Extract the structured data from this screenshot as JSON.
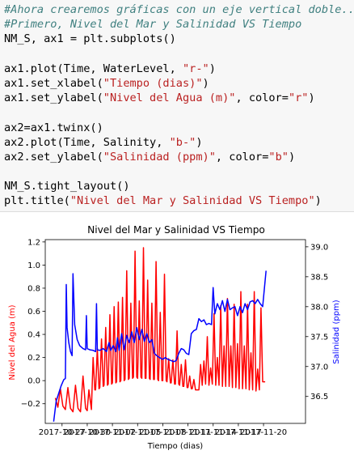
{
  "code_cell": {
    "lines": [
      [
        {
          "t": "#Ahora crearemos gráficas con un eje vertical doble...",
          "c": "comment"
        }
      ],
      [
        {
          "t": "#Primero, Nivel del Mar y Salinidad VS Tiempo",
          "c": "comment"
        }
      ],
      [
        {
          "t": "NM_S, ax1 = plt.subplots()",
          "c": ""
        }
      ],
      [
        {
          "t": "",
          "c": ""
        }
      ],
      [
        {
          "t": "ax1.plot(Time, WaterLevel, ",
          "c": ""
        },
        {
          "t": "\"r-\"",
          "c": "str"
        },
        {
          "t": ")",
          "c": ""
        }
      ],
      [
        {
          "t": "ax1.set_xlabel(",
          "c": ""
        },
        {
          "t": "\"Tiempo (dias)\"",
          "c": "str"
        },
        {
          "t": ")",
          "c": ""
        }
      ],
      [
        {
          "t": "ax1.set_ylabel(",
          "c": ""
        },
        {
          "t": "\"Nivel del Agua (m)\"",
          "c": "str"
        },
        {
          "t": ", color=",
          "c": ""
        },
        {
          "t": "\"r\"",
          "c": "str"
        },
        {
          "t": ")",
          "c": ""
        }
      ],
      [
        {
          "t": "",
          "c": ""
        }
      ],
      [
        {
          "t": "ax2=ax1.twinx()",
          "c": ""
        }
      ],
      [
        {
          "t": "ax2.plot(Time, Salinity, ",
          "c": ""
        },
        {
          "t": "\"b-\"",
          "c": "str"
        },
        {
          "t": ")",
          "c": ""
        }
      ],
      [
        {
          "t": "ax2.set_ylabel(",
          "c": ""
        },
        {
          "t": "\"Salinidad (ppm)\"",
          "c": "str"
        },
        {
          "t": ", color=",
          "c": ""
        },
        {
          "t": "\"b\"",
          "c": "str"
        },
        {
          "t": ")",
          "c": ""
        }
      ],
      [
        {
          "t": "",
          "c": ""
        }
      ],
      [
        {
          "t": "NM_S.tight_layout()",
          "c": ""
        }
      ],
      [
        {
          "t": "plt.title(",
          "c": ""
        },
        {
          "t": "\"Nivel del Mar y Salinidad VS Tiempo\"",
          "c": "str"
        },
        {
          "t": ")",
          "c": ""
        }
      ],
      [
        {
          "t": "plt.show()",
          "c": ""
        }
      ]
    ]
  },
  "chart_data": {
    "type": "line",
    "title": "Nivel del Mar y Salinidad VS Tiempo",
    "xlabel": "Tiempo (dias)",
    "ylabel_left": "Nivel del Agua (m)",
    "ylabel_right": "Salinidad (ppm)",
    "left_color": "#ff0000",
    "right_color": "#0000ff",
    "xlim": [
      0,
      31
    ],
    "ylim_left": [
      -0.37,
      1.22
    ],
    "ylim_right": [
      36.05,
      39.12
    ],
    "x_ticks": [
      {
        "x": 2,
        "label": "2017-10-27"
      },
      {
        "x": 5,
        "label": "2017-10-30"
      },
      {
        "x": 8,
        "label": "2017-11-02"
      },
      {
        "x": 11,
        "label": "2017-11-05"
      },
      {
        "x": 14,
        "label": "2017-11-08"
      },
      {
        "x": 17,
        "label": "2017-11-11"
      },
      {
        "x": 20,
        "label": "2017-11-14"
      },
      {
        "x": 23,
        "label": "2017-11-17"
      },
      {
        "x": 26,
        "label": "2017-11-20"
      }
    ],
    "y_ticks_left": [
      -0.2,
      0.0,
      0.2,
      0.4,
      0.6,
      0.8,
      1.0,
      1.2
    ],
    "y_tick_labels_left": [
      "−0.2",
      "0.0",
      "0.2",
      "0.4",
      "0.6",
      "0.8",
      "1.0",
      "1.2"
    ],
    "y_ticks_right": [
      36.5,
      37.0,
      37.5,
      38.0,
      38.5,
      39.0
    ],
    "y_tick_labels_right": [
      "36.5",
      "37.0",
      "37.5",
      "38.0",
      "38.5",
      "39.0"
    ],
    "series": [
      {
        "name": "",
        "axis": "left",
        "points": [
          [
            1.2,
            -0.15
          ],
          [
            1.5,
            -0.23
          ],
          [
            1.8,
            -0.07
          ],
          [
            2.1,
            -0.22
          ],
          [
            2.4,
            -0.25
          ],
          [
            2.7,
            -0.06
          ],
          [
            3.0,
            -0.24
          ],
          [
            3.3,
            -0.27
          ],
          [
            3.6,
            -0.04
          ],
          [
            3.9,
            -0.24
          ],
          [
            4.2,
            -0.27
          ],
          [
            4.5,
            0.04
          ],
          [
            4.8,
            -0.24
          ],
          [
            5.0,
            -0.26
          ],
          [
            5.2,
            -0.08
          ],
          [
            5.5,
            -0.25
          ],
          [
            5.7,
            0.2
          ],
          [
            5.9,
            -0.08
          ],
          [
            6.0,
            -0.08
          ],
          [
            6.2,
            0.28
          ],
          [
            6.4,
            -0.07
          ],
          [
            6.5,
            -0.06
          ],
          [
            6.7,
            0.36
          ],
          [
            6.9,
            -0.05
          ],
          [
            7.0,
            -0.04
          ],
          [
            7.2,
            0.46
          ],
          [
            7.4,
            -0.04
          ],
          [
            7.5,
            -0.03
          ],
          [
            7.7,
            0.57
          ],
          [
            7.9,
            -0.03
          ],
          [
            8.0,
            -0.02
          ],
          [
            8.2,
            0.64
          ],
          [
            8.4,
            -0.02
          ],
          [
            8.5,
            -0.01
          ],
          [
            8.7,
            0.68
          ],
          [
            8.9,
            -0.01
          ],
          [
            9.0,
            0.0
          ],
          [
            9.2,
            0.72
          ],
          [
            9.4,
            0.0
          ],
          [
            9.5,
            0.01
          ],
          [
            9.7,
            0.95
          ],
          [
            9.9,
            0.01
          ],
          [
            10.0,
            0.02
          ],
          [
            10.2,
            0.67
          ],
          [
            10.4,
            0.02
          ],
          [
            10.5,
            0.03
          ],
          [
            10.7,
            1.12
          ],
          [
            10.9,
            0.03
          ],
          [
            11.0,
            0.02
          ],
          [
            11.2,
            0.69
          ],
          [
            11.4,
            0.03
          ],
          [
            11.5,
            0.02
          ],
          [
            11.7,
            1.15
          ],
          [
            11.9,
            0.02
          ],
          [
            12.0,
            0.02
          ],
          [
            12.2,
            0.87
          ],
          [
            12.4,
            0.02
          ],
          [
            12.5,
            0.01
          ],
          [
            12.7,
            0.67
          ],
          [
            12.9,
            0.01
          ],
          [
            13.0,
            0.01
          ],
          [
            13.2,
            1.03
          ],
          [
            13.4,
            0.01
          ],
          [
            13.5,
            0.0
          ],
          [
            13.7,
            0.59
          ],
          [
            13.9,
            0.0
          ],
          [
            14.0,
            0.0
          ],
          [
            14.2,
            0.92
          ],
          [
            14.4,
            0.0
          ],
          [
            14.5,
            -0.01
          ],
          [
            14.7,
            0.19
          ],
          [
            14.9,
            -0.02
          ],
          [
            15.0,
            -0.02
          ],
          [
            15.2,
            0.18
          ],
          [
            15.4,
            -0.03
          ],
          [
            15.5,
            -0.03
          ],
          [
            15.7,
            0.43
          ],
          [
            15.9,
            -0.03
          ],
          [
            16.0,
            -0.04
          ],
          [
            16.2,
            0.14
          ],
          [
            16.4,
            -0.05
          ],
          [
            16.5,
            -0.05
          ],
          [
            16.7,
            0.18
          ],
          [
            16.9,
            -0.06
          ],
          [
            17.0,
            -0.06
          ],
          [
            17.2,
            0.04
          ],
          [
            17.4,
            -0.07
          ],
          [
            17.5,
            -0.07
          ],
          [
            17.7,
            0.01
          ],
          [
            17.9,
            -0.08
          ],
          [
            18.0,
            -0.08
          ],
          [
            18.3,
            -0.08
          ],
          [
            18.5,
            0.14
          ],
          [
            18.7,
            -0.04
          ],
          [
            18.9,
            0.17
          ],
          [
            19.1,
            -0.03
          ],
          [
            19.3,
            0.38
          ],
          [
            19.5,
            -0.04
          ],
          [
            19.7,
            0.11
          ],
          [
            19.9,
            -0.03
          ],
          [
            20.1,
            0.58
          ],
          [
            20.3,
            -0.04
          ],
          [
            20.5,
            0.2
          ],
          [
            20.7,
            -0.04
          ],
          [
            20.9,
            0.65
          ],
          [
            21.1,
            -0.05
          ],
          [
            21.3,
            0.3
          ],
          [
            21.5,
            -0.05
          ],
          [
            21.7,
            0.71
          ],
          [
            21.9,
            -0.05
          ],
          [
            22.1,
            0.3
          ],
          [
            22.3,
            -0.06
          ],
          [
            22.5,
            0.66
          ],
          [
            22.7,
            -0.06
          ],
          [
            22.9,
            0.32
          ],
          [
            23.1,
            -0.07
          ],
          [
            23.3,
            0.77
          ],
          [
            23.5,
            -0.07
          ],
          [
            23.7,
            0.3
          ],
          [
            23.9,
            -0.07
          ],
          [
            24.1,
            0.66
          ],
          [
            24.3,
            -0.08
          ],
          [
            24.5,
            0.24
          ],
          [
            24.7,
            -0.08
          ],
          [
            24.9,
            0.77
          ],
          [
            25.1,
            -0.09
          ],
          [
            25.3,
            0.1
          ],
          [
            25.5,
            -0.08
          ],
          [
            25.7,
            0.63
          ],
          [
            25.9,
            -0.01
          ],
          [
            26.2,
            -0.01
          ]
        ]
      },
      {
        "name": "",
        "axis": "right",
        "points": [
          [
            1.0,
            36.08
          ],
          [
            1.3,
            36.42
          ],
          [
            1.6,
            36.55
          ],
          [
            1.9,
            36.68
          ],
          [
            2.2,
            36.78
          ],
          [
            2.4,
            36.8
          ],
          [
            2.5,
            38.37
          ],
          [
            2.6,
            37.65
          ],
          [
            2.8,
            37.4
          ],
          [
            3.0,
            37.25
          ],
          [
            3.2,
            37.18
          ],
          [
            3.3,
            38.55
          ],
          [
            3.5,
            37.7
          ],
          [
            3.8,
            37.45
          ],
          [
            4.1,
            37.35
          ],
          [
            4.5,
            37.3
          ],
          [
            4.8,
            37.28
          ],
          [
            4.9,
            37.85
          ],
          [
            5.0,
            37.3
          ],
          [
            5.3,
            37.28
          ],
          [
            5.7,
            37.27
          ],
          [
            6.0,
            37.25
          ],
          [
            6.1,
            38.05
          ],
          [
            6.2,
            37.28
          ],
          [
            6.5,
            37.27
          ],
          [
            6.9,
            37.3
          ],
          [
            7.3,
            37.25
          ],
          [
            7.6,
            37.4
          ],
          [
            7.8,
            37.27
          ],
          [
            8.1,
            37.35
          ],
          [
            8.4,
            37.25
          ],
          [
            8.6,
            37.48
          ],
          [
            8.8,
            37.27
          ],
          [
            9.1,
            37.55
          ],
          [
            9.4,
            37.28
          ],
          [
            9.7,
            37.52
          ],
          [
            10.0,
            37.4
          ],
          [
            10.3,
            37.58
          ],
          [
            10.6,
            37.4
          ],
          [
            10.9,
            37.65
          ],
          [
            11.2,
            37.45
          ],
          [
            11.5,
            37.62
          ],
          [
            11.8,
            37.42
          ],
          [
            12.1,
            37.55
          ],
          [
            12.4,
            37.4
          ],
          [
            12.7,
            37.45
          ],
          [
            13.0,
            37.22
          ],
          [
            13.3,
            37.18
          ],
          [
            13.6,
            37.15
          ],
          [
            14.0,
            37.12
          ],
          [
            14.3,
            37.15
          ],
          [
            14.6,
            37.12
          ],
          [
            15.0,
            37.1
          ],
          [
            15.3,
            37.08
          ],
          [
            15.6,
            37.1
          ],
          [
            15.9,
            37.22
          ],
          [
            16.2,
            37.3
          ],
          [
            16.5,
            37.28
          ],
          [
            16.8,
            37.22
          ],
          [
            17.1,
            37.2
          ],
          [
            17.4,
            37.55
          ],
          [
            17.7,
            37.6
          ],
          [
            18.0,
            37.62
          ],
          [
            18.3,
            37.8
          ],
          [
            18.6,
            37.75
          ],
          [
            18.9,
            37.78
          ],
          [
            19.2,
            37.7
          ],
          [
            19.5,
            37.72
          ],
          [
            19.8,
            37.7
          ],
          [
            20.0,
            38.32
          ],
          [
            20.2,
            37.88
          ],
          [
            20.5,
            38.05
          ],
          [
            20.8,
            37.95
          ],
          [
            21.1,
            38.1
          ],
          [
            21.4,
            37.92
          ],
          [
            21.7,
            38.12
          ],
          [
            22.0,
            37.95
          ],
          [
            22.3,
            37.98
          ],
          [
            22.6,
            38.0
          ],
          [
            22.9,
            37.85
          ],
          [
            23.2,
            38.0
          ],
          [
            23.5,
            37.9
          ],
          [
            23.8,
            38.05
          ],
          [
            24.1,
            37.95
          ],
          [
            24.4,
            38.08
          ],
          [
            24.7,
            38.1
          ],
          [
            25.0,
            38.05
          ],
          [
            25.3,
            38.12
          ],
          [
            25.6,
            38.05
          ],
          [
            25.9,
            38.0
          ],
          [
            26.1,
            38.3
          ],
          [
            26.3,
            38.6
          ]
        ]
      }
    ]
  }
}
